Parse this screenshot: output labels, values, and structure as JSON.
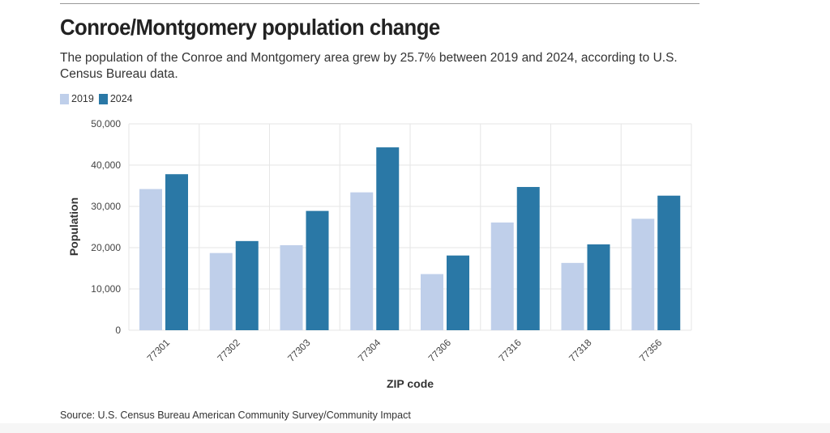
{
  "header": {
    "title": "Conroe/Montgomery population change",
    "subtitle": "The population of the Conroe and Montgomery area grew by 25.7% between 2019 and 2024, according to U.S. Census Bureau data."
  },
  "footer": {
    "source": "Source: U.S. Census Bureau American Community Survey/Community Impact"
  },
  "colors": {
    "series_2019": "#bfcfea",
    "series_2024": "#2a78a6",
    "grid": "#e6e6e6"
  },
  "chart_data": {
    "type": "bar",
    "categories": [
      "77301",
      "77302",
      "77303",
      "77304",
      "77306",
      "77316",
      "77318",
      "77356"
    ],
    "series": [
      {
        "name": "2019",
        "values": [
          34200,
          18700,
          20600,
          33400,
          13600,
          26100,
          16300,
          27000
        ]
      },
      {
        "name": "2024",
        "values": [
          37800,
          21600,
          28900,
          44300,
          18100,
          34700,
          20800,
          32600
        ]
      }
    ],
    "title": "Conroe/Montgomery population change",
    "xlabel": "ZIP code",
    "ylabel": "Population",
    "ylim": [
      0,
      50000
    ],
    "yticks": [
      "0",
      "10,000",
      "20,000",
      "30,000",
      "40,000",
      "50,000"
    ],
    "grid": true,
    "legend": "top-left"
  }
}
